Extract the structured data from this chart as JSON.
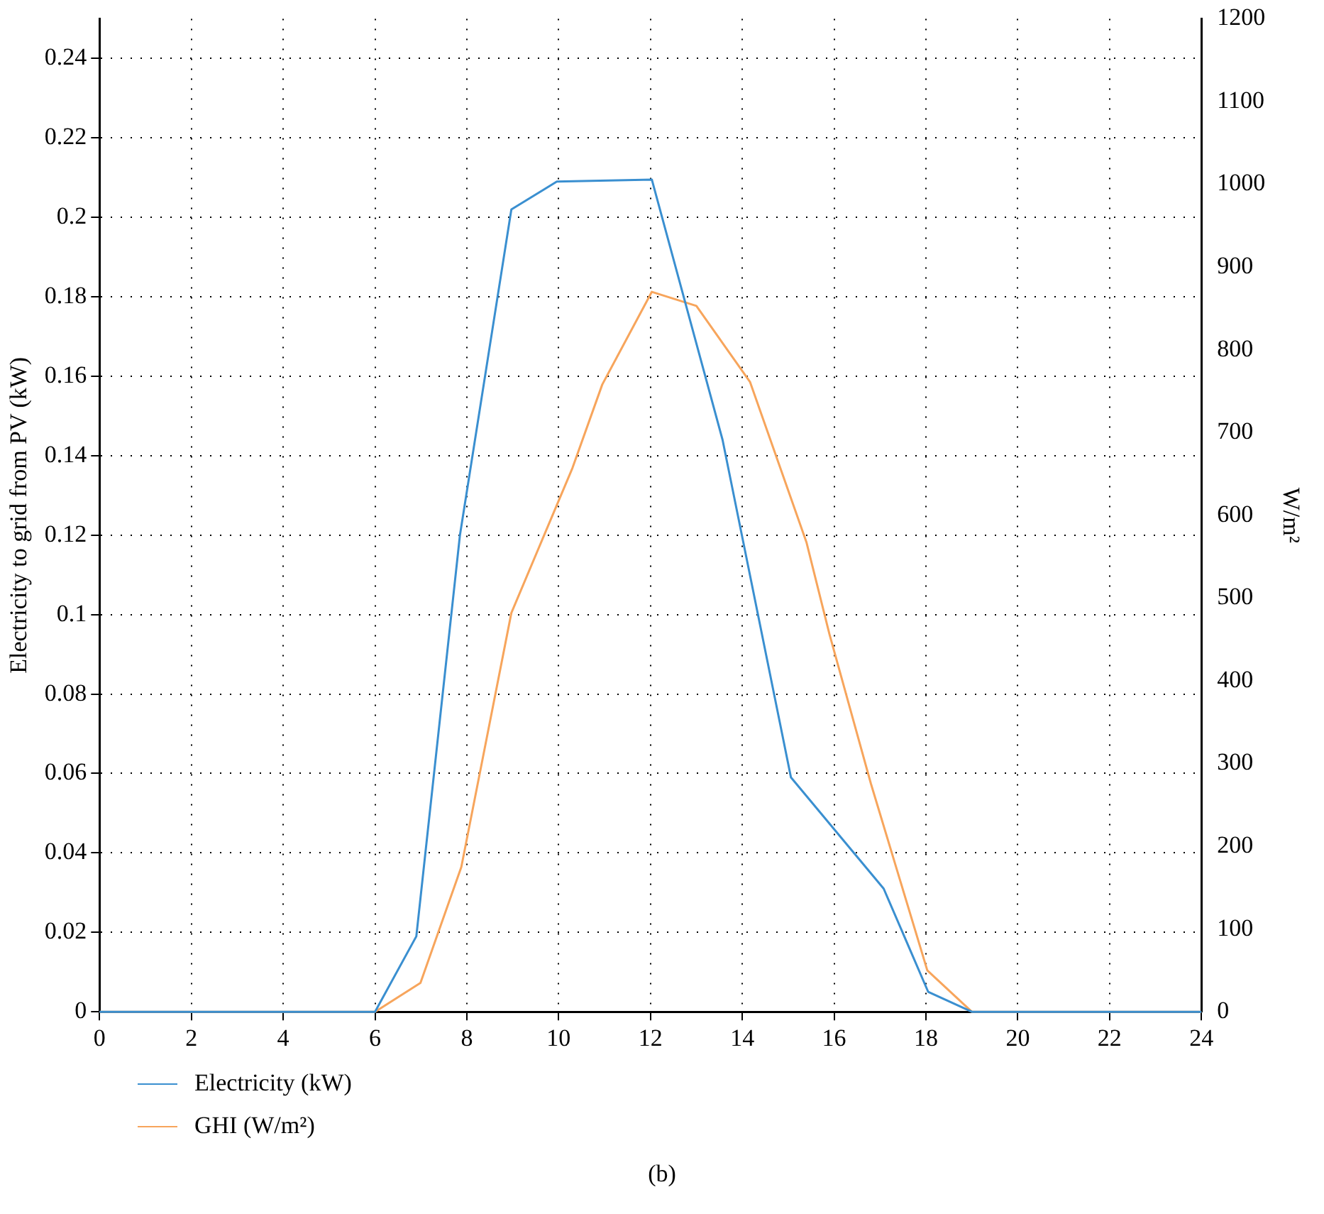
{
  "chart_data": {
    "type": "line",
    "xlabel": null,
    "ylabel": "Electricity to grid from PV (kW)",
    "y2label": "W/m²",
    "annotations": [
      "(b)"
    ],
    "xlim": [
      0,
      24
    ],
    "xticks": [
      0,
      2,
      4,
      6,
      8,
      10,
      12,
      14,
      16,
      18,
      20,
      22,
      24
    ],
    "ylim": [
      0,
      0.25
    ],
    "yticks": [
      0,
      0.02,
      0.04,
      0.06,
      0.08,
      0.1,
      0.12,
      0.14,
      0.16,
      0.18,
      0.2,
      0.22,
      0.24
    ],
    "y2lim": [
      0,
      1200
    ],
    "y2ticks": [
      0,
      100,
      200,
      300,
      400,
      500,
      600,
      700,
      800,
      900,
      1000,
      1100,
      1200
    ],
    "grid": true,
    "legend": "bottom",
    "marker": "none",
    "line_style": "solid",
    "series": [
      {
        "name": "Electricity (kW)",
        "color": "#3a8fd0",
        "x": [
          0,
          6,
          6.9,
          7.85,
          8.97,
          9.96,
          12.03,
          13.57,
          15.06,
          17.08,
          18.05,
          19,
          24
        ],
        "values": [
          0,
          0,
          0.019,
          0.12,
          0.202,
          0.209,
          0.2095,
          0.144,
          0.059,
          0.031,
          0.005,
          0,
          0
        ]
      },
      {
        "name": "GHI (W/m²)",
        "color": "#f7a55c",
        "axis": "y2",
        "x": [
          0,
          6,
          6.99,
          7.88,
          8.97,
          10.3,
          10.95,
          12.03,
          13.0,
          14.17,
          15.4,
          15.9,
          16.8,
          18.03,
          19,
          24
        ],
        "values": [
          0,
          0,
          35,
          175,
          482,
          657,
          758,
          870,
          853,
          761,
          567,
          456,
          276,
          50,
          0,
          0
        ]
      }
    ]
  }
}
